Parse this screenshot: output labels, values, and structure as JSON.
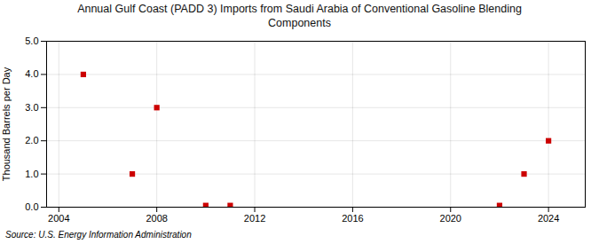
{
  "chart_data": {
    "type": "scatter",
    "title": "Annual Gulf Coast (PADD 3) Imports from Saudi Arabia of Conventional Gasoline Blending\nComponents",
    "ylabel": "Thousand Barrels per Day",
    "annotation": "Source: U.S. Energy Information Administration",
    "x": [
      2005,
      2007,
      2008,
      2010,
      2011,
      2022,
      2023,
      2024
    ],
    "values": [
      4.0,
      1.0,
      3.0,
      0.05,
      0.05,
      0.05,
      1.0,
      2.0
    ],
    "color": "#cc0000",
    "marker": "square",
    "xlim": [
      2003.5,
      2025.5
    ],
    "xticks": [
      2004,
      2008,
      2012,
      2016,
      2020,
      2024
    ],
    "ylim": [
      0,
      5
    ],
    "yticks": [
      {
        "value": 0,
        "label": "0.0"
      },
      {
        "value": 1,
        "label": "1.0"
      },
      {
        "value": 2,
        "label": "2.0"
      },
      {
        "value": 3,
        "label": "3.0"
      },
      {
        "value": 4,
        "label": "4.0"
      },
      {
        "value": 5,
        "label": "5.0"
      }
    ],
    "grid": true
  }
}
